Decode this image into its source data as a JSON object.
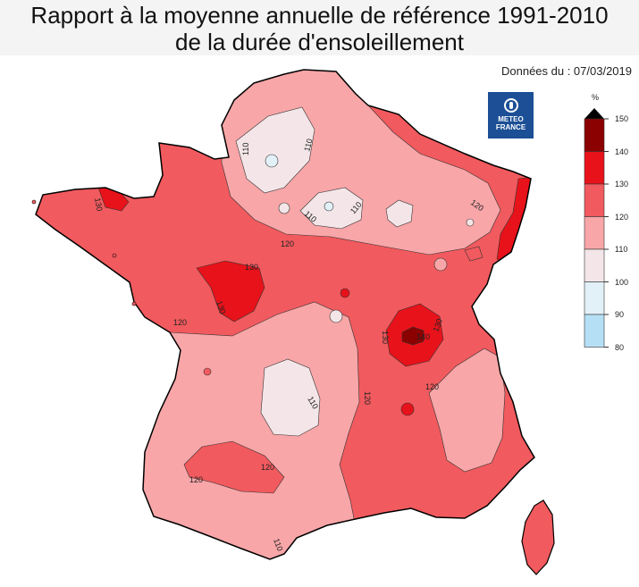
{
  "title": {
    "line1": "Rapport à la moyenne annuelle de référence 1991-2010",
    "line2": "de la durée d'ensoleillement"
  },
  "date_label": "Données du : 07/03/2019",
  "logo": {
    "line1": "METEO",
    "line2": "FRANCE",
    "color": "#1c4f95"
  },
  "legend": {
    "unit": "%",
    "classes": [
      {
        "min": 140,
        "max": 150,
        "color": "#8b0000"
      },
      {
        "min": 130,
        "max": 140,
        "color": "#e8121a"
      },
      {
        "min": 120,
        "max": 130,
        "color": "#f15a5e"
      },
      {
        "min": 110,
        "max": 120,
        "color": "#f8a6a8"
      },
      {
        "min": 100,
        "max": 110,
        "color": "#f4e6e8"
      },
      {
        "min": 90,
        "max": 100,
        "color": "#e2f0f8"
      },
      {
        "min": 80,
        "max": 90,
        "color": "#b5dff5"
      }
    ],
    "labels": [
      "150",
      "140",
      "130",
      "120",
      "110",
      "100",
      "90",
      "80"
    ]
  },
  "isolines": [
    "110",
    "110",
    "110",
    "110",
    "120",
    "120",
    "120",
    "120",
    "120",
    "120",
    "130",
    "130",
    "130",
    "130",
    "130",
    "140",
    "110",
    "120",
    "110"
  ]
}
